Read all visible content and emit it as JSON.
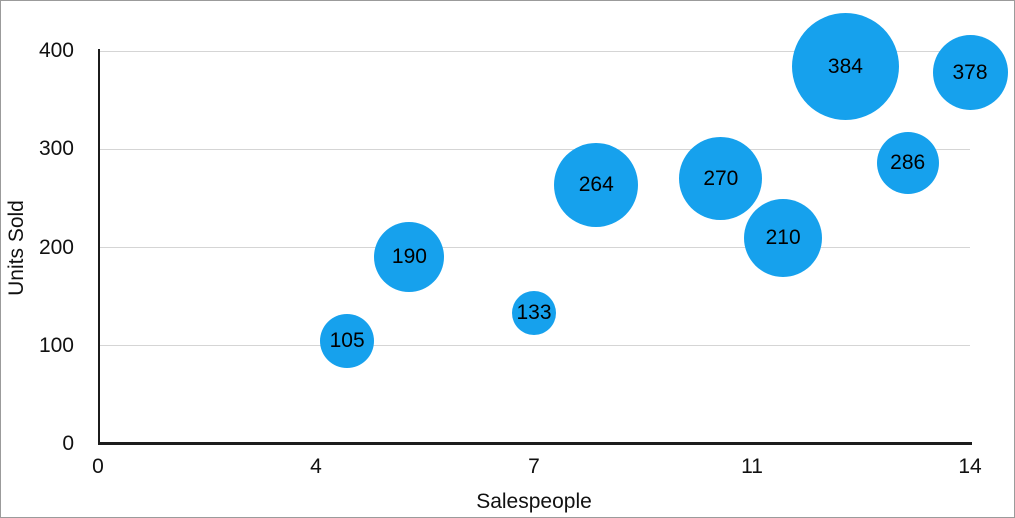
{
  "figure": {
    "background": "#ffffff",
    "frame_border_color": "#9b9b9b"
  },
  "chart_data": {
    "type": "scatter",
    "subtype": "bubble",
    "title": "",
    "xlabel": "Salespeople",
    "ylabel": "Units Sold",
    "xlim": [
      0,
      14
    ],
    "ylim": [
      0,
      400
    ],
    "x_tick_labels": [
      "0",
      "4",
      "7",
      "11",
      "14"
    ],
    "y_tick_labels": [
      "0",
      "100",
      "200",
      "300",
      "400"
    ],
    "grid": "horizontal-only",
    "legend": "none",
    "series": [
      {
        "name": "Units Sold",
        "bubble_color": "#16A1ED",
        "label_color": "#000000",
        "points": [
          {
            "x": 4,
            "y": 105,
            "label": "105",
            "radius_px": 27
          },
          {
            "x": 5,
            "y": 190,
            "label": "190",
            "radius_px": 35
          },
          {
            "x": 7,
            "y": 133,
            "label": "133",
            "radius_px": 22
          },
          {
            "x": 8,
            "y": 264,
            "label": "264",
            "radius_px": 42
          },
          {
            "x": 10,
            "y": 270,
            "label": "270",
            "radius_px": 41.5
          },
          {
            "x": 11,
            "y": 210,
            "label": "210",
            "radius_px": 39
          },
          {
            "x": 12,
            "y": 384,
            "label": "384",
            "radius_px": 53.5
          },
          {
            "x": 13,
            "y": 286,
            "label": "286",
            "radius_px": 31
          },
          {
            "x": 14,
            "y": 378,
            "label": "378",
            "radius_px": 37.5
          }
        ]
      }
    ],
    "colors": {
      "gridline": "#d5d5d5",
      "axis_line": "#1c1c1c",
      "tick_text": "#111111"
    }
  }
}
